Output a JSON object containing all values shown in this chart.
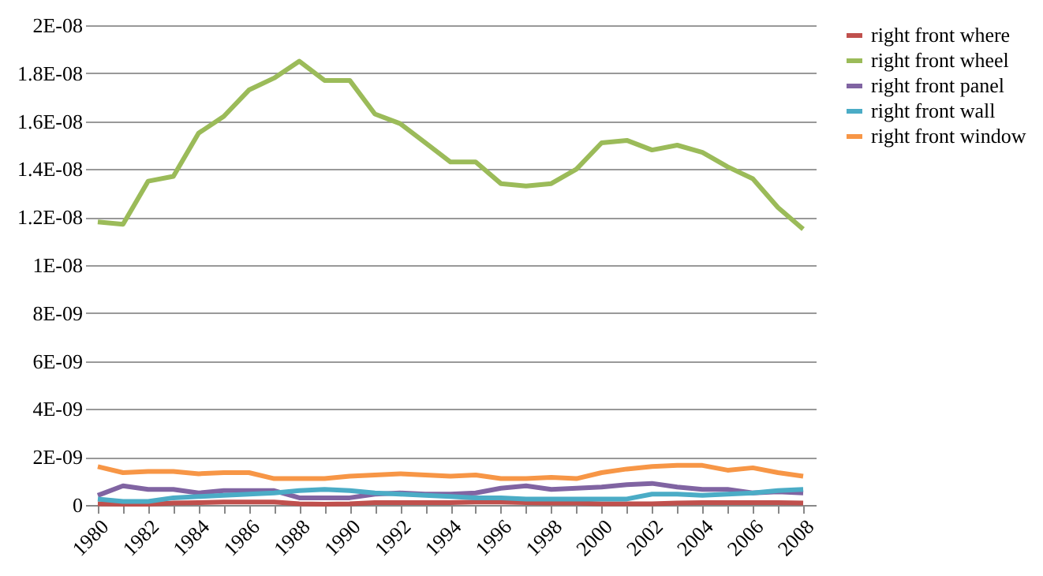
{
  "chart_data": {
    "type": "line",
    "categories": [
      "1980",
      null,
      "1982",
      null,
      "1984",
      null,
      "1986",
      null,
      "1988",
      null,
      "1990",
      null,
      "1992",
      null,
      "1994",
      null,
      "1996",
      null,
      "1998",
      null,
      "2000",
      null,
      "2002",
      null,
      "2004",
      null,
      "2006",
      null,
      "2008"
    ],
    "series": [
      {
        "name": "right front where",
        "color": "#c0504d",
        "values": [
          5e-11,
          3e-11,
          3e-11,
          8e-11,
          1e-10,
          1.2e-10,
          1.2e-10,
          1.2e-10,
          5e-11,
          3e-11,
          5e-11,
          1e-10,
          1e-10,
          1e-10,
          1e-10,
          1.2e-10,
          1.2e-10,
          1e-10,
          8e-11,
          8e-11,
          5e-11,
          5e-11,
          5e-11,
          8e-11,
          1e-10,
          1e-10,
          1e-10,
          1e-10,
          8e-11
        ]
      },
      {
        "name": "right front wheel",
        "color": "#9bbb59",
        "values": [
          1.18e-08,
          1.17e-08,
          1.35e-08,
          1.37e-08,
          1.55e-08,
          1.62e-08,
          1.73e-08,
          1.78e-08,
          1.85e-08,
          1.77e-08,
          1.77e-08,
          1.63e-08,
          1.59e-08,
          1.51e-08,
          1.43e-08,
          1.43e-08,
          1.34e-08,
          1.33e-08,
          1.34e-08,
          1.4e-08,
          1.51e-08,
          1.52e-08,
          1.48e-08,
          1.5e-08,
          1.47e-08,
          1.41e-08,
          1.36e-08,
          1.24e-08,
          1.15e-08
        ]
      },
      {
        "name": "right front panel",
        "color": "#8064a2",
        "values": [
          4e-10,
          8e-10,
          6.5e-10,
          6.5e-10,
          5e-10,
          6e-10,
          6e-10,
          6e-10,
          3e-10,
          3e-10,
          3e-10,
          4.5e-10,
          5e-10,
          4.5e-10,
          4.5e-10,
          5e-10,
          7e-10,
          8e-10,
          6.5e-10,
          7e-10,
          7.5e-10,
          8.5e-10,
          9e-10,
          7.5e-10,
          6.5e-10,
          6.5e-10,
          5e-10,
          5.5e-10,
          5e-10
        ]
      },
      {
        "name": "right front wall",
        "color": "#4bacc6",
        "values": [
          2.5e-10,
          1.5e-10,
          1.5e-10,
          3e-10,
          3.5e-10,
          4e-10,
          4.5e-10,
          5e-10,
          6e-10,
          6.5e-10,
          6e-10,
          5e-10,
          4.5e-10,
          4e-10,
          3.5e-10,
          3e-10,
          3e-10,
          2.5e-10,
          2.5e-10,
          2.5e-10,
          2.5e-10,
          2.5e-10,
          4.5e-10,
          4.5e-10,
          4e-10,
          4.5e-10,
          5e-10,
          6e-10,
          6.5e-10
        ]
      },
      {
        "name": "right front window",
        "color": "#f79646",
        "values": [
          1.6e-09,
          1.35e-09,
          1.4e-09,
          1.4e-09,
          1.3e-09,
          1.35e-09,
          1.35e-09,
          1.1e-09,
          1.1e-09,
          1.1e-09,
          1.2e-09,
          1.25e-09,
          1.3e-09,
          1.25e-09,
          1.2e-09,
          1.25e-09,
          1.1e-09,
          1.1e-09,
          1.15e-09,
          1.1e-09,
          1.35e-09,
          1.5e-09,
          1.6e-09,
          1.65e-09,
          1.65e-09,
          1.45e-09,
          1.55e-09,
          1.35e-09,
          1.2e-09
        ]
      }
    ],
    "ylim": [
      0,
      2e-08
    ],
    "yticks": [
      0,
      {
        "value": 2e-09,
        "label": "2E-09"
      },
      {
        "value": 4e-09,
        "label": "4E-09"
      },
      {
        "value": 6e-09,
        "label": "6E-09"
      },
      {
        "value": 8e-09,
        "label": "8E-09"
      },
      {
        "value": 1e-08,
        "label": "1E-08"
      },
      {
        "value": 1.2e-08,
        "label": "1.2E-08"
      },
      {
        "value": 1.4e-08,
        "label": "1.4E-08"
      },
      {
        "value": 1.6e-08,
        "label": "1.6E-08"
      },
      {
        "value": 1.8e-08,
        "label": "1.8E-08"
      },
      {
        "value": 2e-08,
        "label": "2E-08"
      }
    ],
    "grid": "y",
    "legend": "right",
    "marker": "none",
    "line_style": "solid"
  }
}
